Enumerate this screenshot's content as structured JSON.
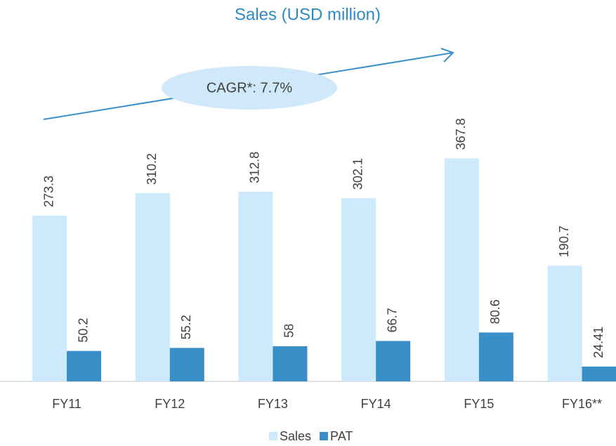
{
  "chart_data": {
    "type": "bar",
    "title": "Sales (USD million)",
    "annotation": "CAGR*: 7.7%",
    "categories": [
      "FY11",
      "FY12",
      "FY13",
      "FY14",
      "FY15",
      "FY16**"
    ],
    "series": [
      {
        "name": "Sales",
        "color": "#cdeafc",
        "values": [
          273.3,
          310.2,
          312.8,
          302.1,
          367.8,
          190.7
        ]
      },
      {
        "name": "PAT",
        "color": "#3a8fc8",
        "values": [
          50.2,
          55.2,
          58,
          66.7,
          80.6,
          24.41
        ]
      }
    ],
    "ylim": [
      0,
      450
    ],
    "legend": "bottom"
  }
}
